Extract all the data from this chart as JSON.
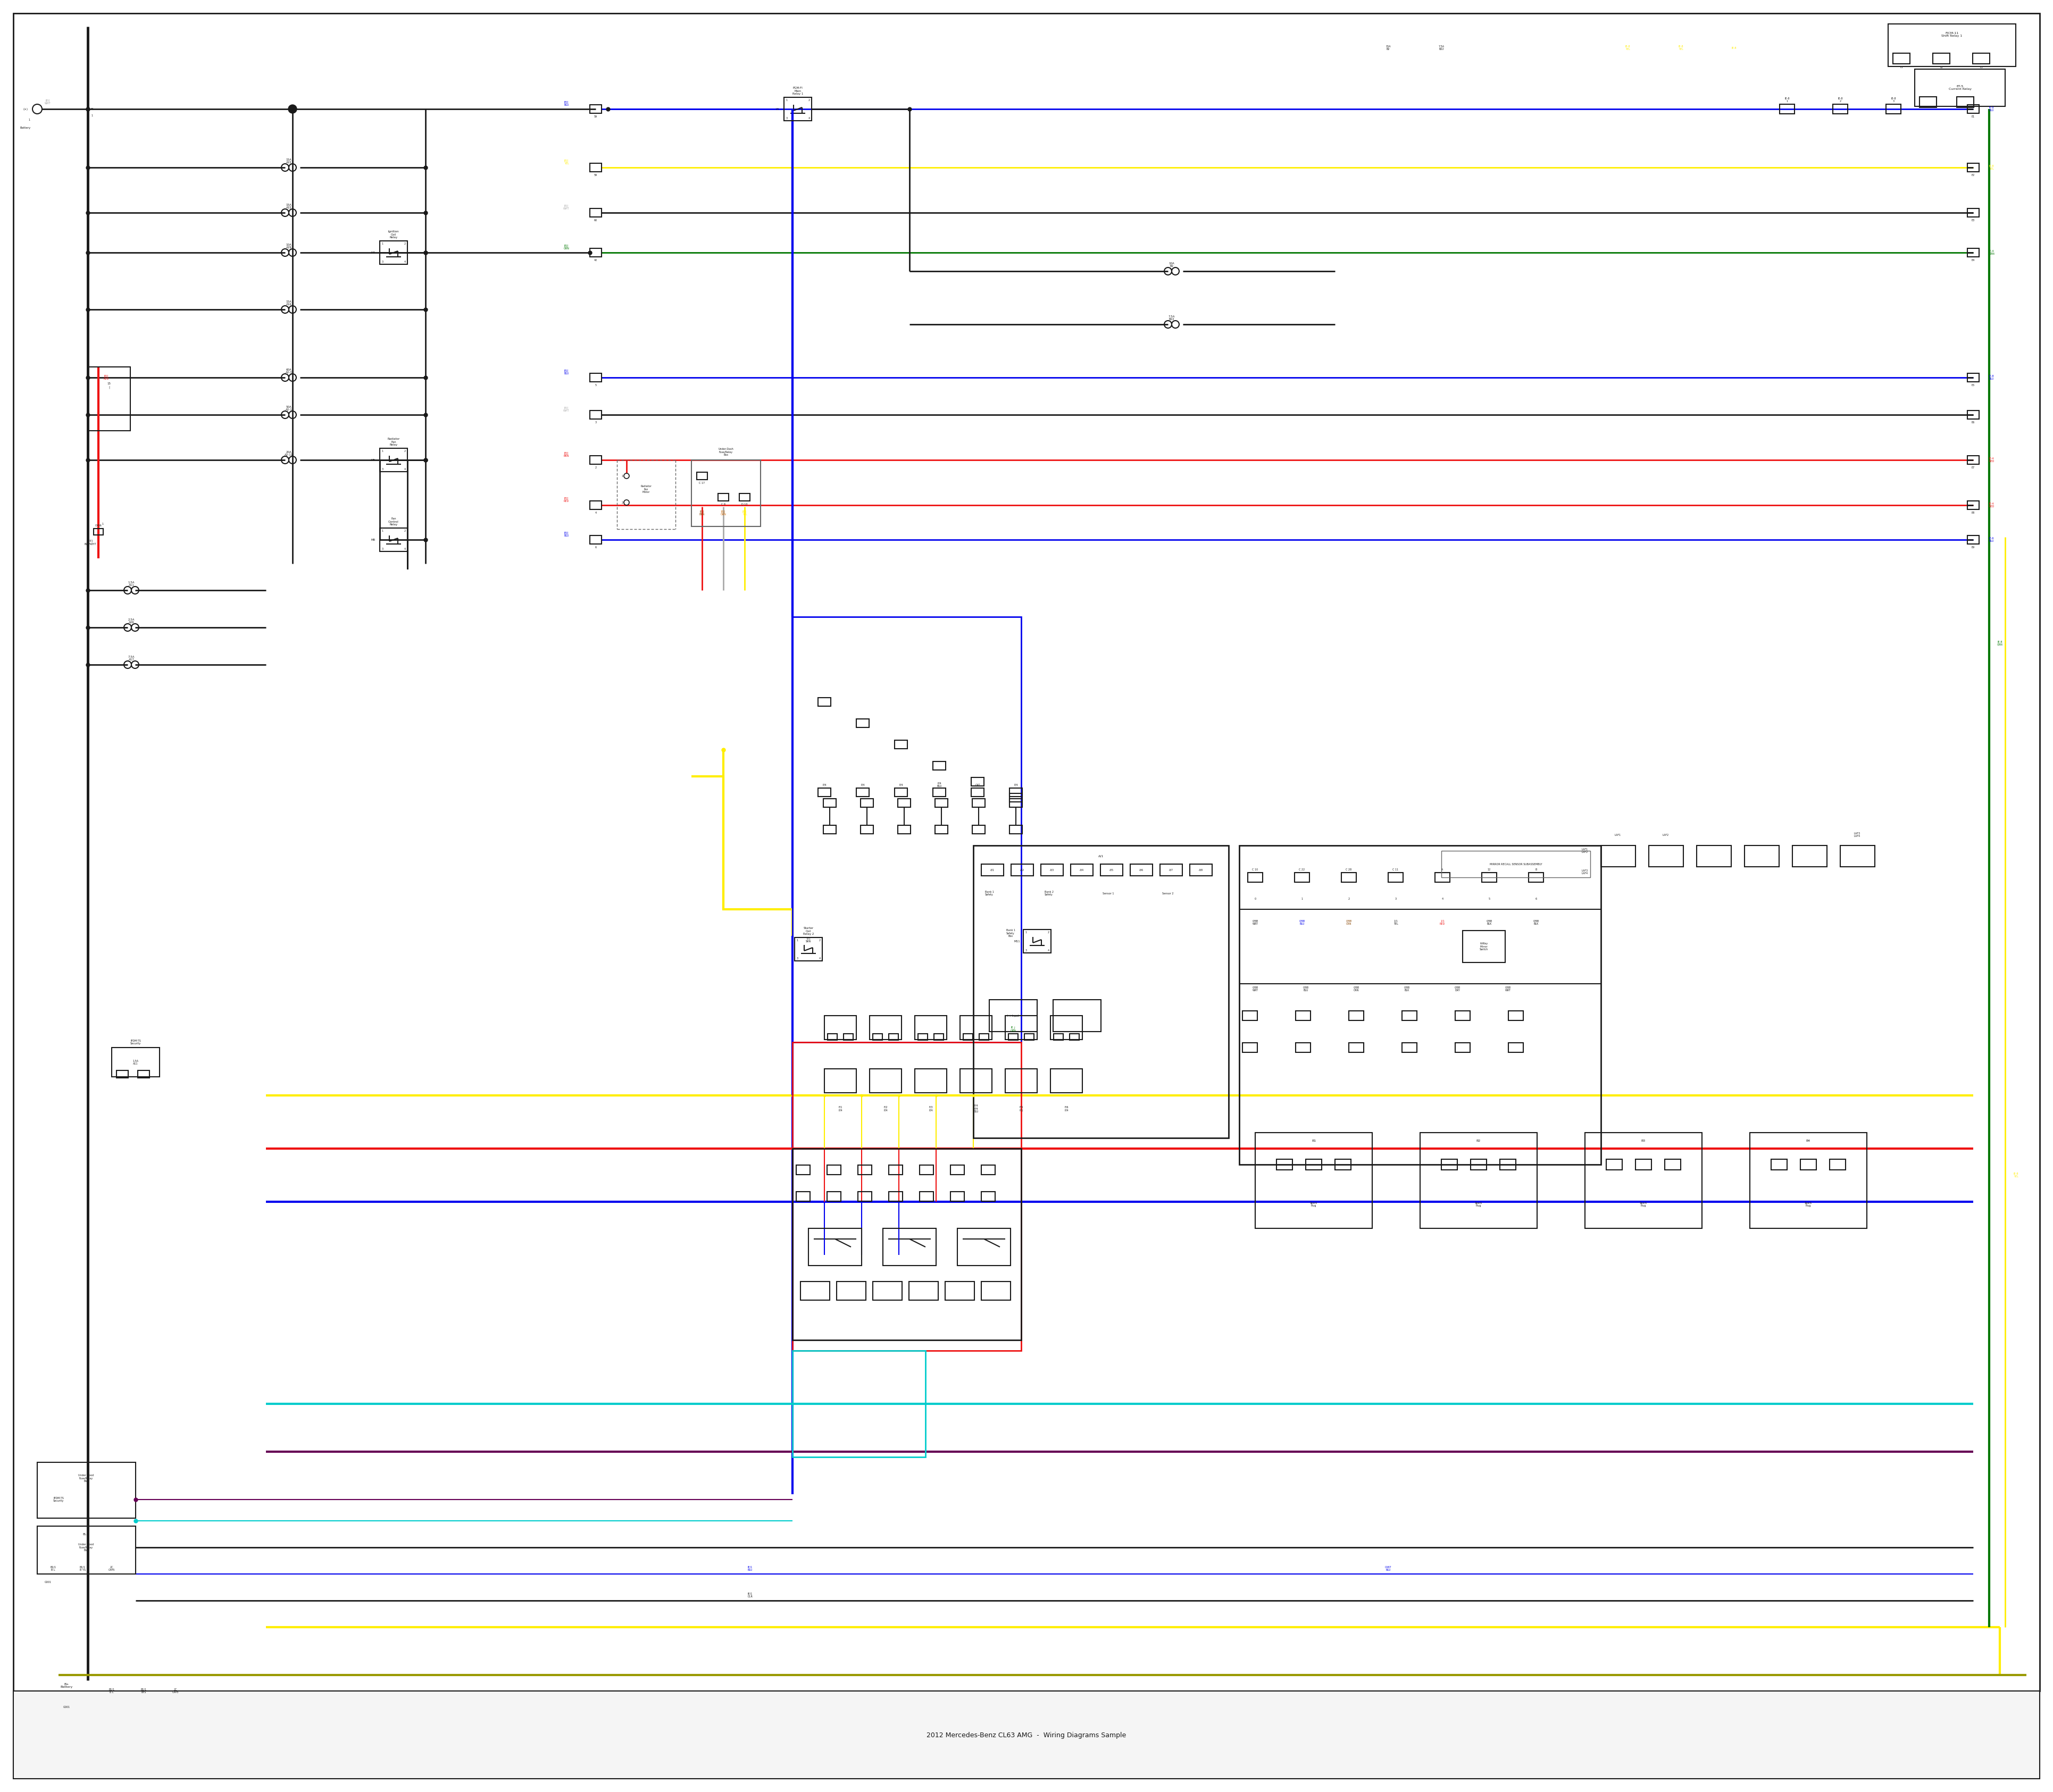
{
  "bg": "#ffffff",
  "lw": {
    "border": 2.0,
    "bus": 3.5,
    "wire": 2.0,
    "thin": 1.5,
    "fuse": 1.5,
    "thick_wire": 3.0
  },
  "colors": {
    "blk": "#1a1a1a",
    "red": "#ee1111",
    "blue": "#0000ee",
    "yellow": "#ffee00",
    "green": "#007700",
    "gray": "#666666",
    "lt_gray": "#aaaaaa",
    "cyan": "#00cccc",
    "purple": "#660055",
    "dk_yellow": "#999900",
    "orange": "#cc6600",
    "brown": "#884400",
    "white_wire": "#999999"
  },
  "fs": {
    "label": 5.5,
    "small": 4.5,
    "tiny": 4.0,
    "micro": 3.5
  }
}
